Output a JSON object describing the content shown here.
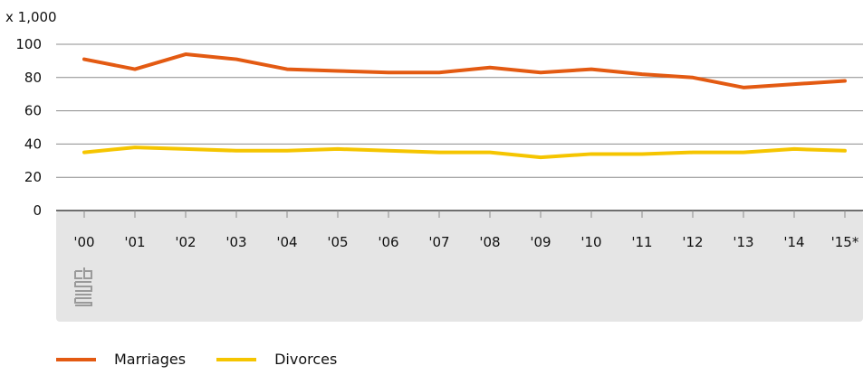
{
  "chart_data": {
    "type": "line",
    "unit_label": "x 1,000",
    "categories": [
      "'00",
      "'01",
      "'02",
      "'03",
      "'04",
      "'05",
      "'06",
      "'07",
      "'08",
      "'09",
      "'10",
      "'11",
      "'12",
      "'13",
      "'14",
      "'15*"
    ],
    "series": [
      {
        "name": "Marriages",
        "color": "#e35a12",
        "values": [
          91,
          85,
          94,
          91,
          85,
          84,
          83,
          83,
          86,
          83,
          85,
          82,
          80,
          74,
          76,
          78
        ]
      },
      {
        "name": "Divorces",
        "color": "#f5c500",
        "values": [
          35,
          38,
          37,
          36,
          36,
          37,
          36,
          35,
          35,
          32,
          34,
          34,
          35,
          35,
          37,
          36
        ]
      }
    ],
    "ylim": [
      0,
      100
    ],
    "yticks": [
      0,
      20,
      40,
      60,
      80,
      100
    ],
    "grid": true,
    "legend_position": "bottom-left"
  },
  "logo_text": "cbs"
}
